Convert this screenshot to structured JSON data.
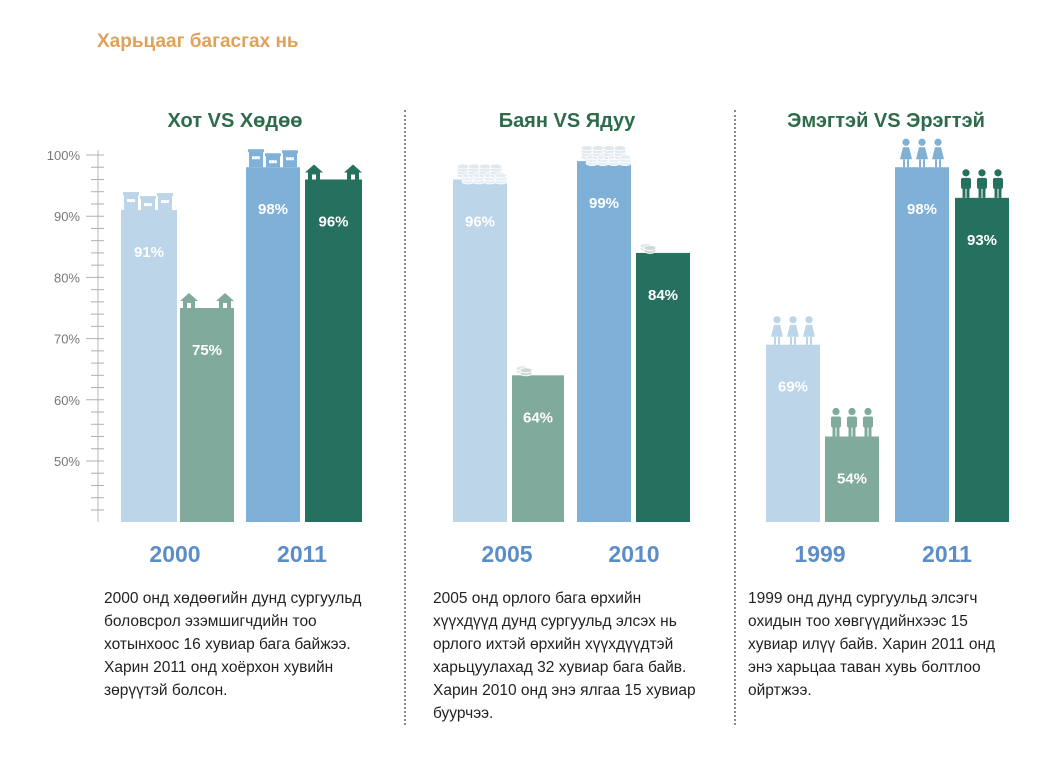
{
  "page_title": "Харьцааг багасгах нь",
  "colors": {
    "title_green": "#2e6b4b",
    "year_blue": "#5b8ec8",
    "light_blue": "#bcd5e8",
    "mid_blue": "#7fb0d8",
    "light_green": "#80aa9b",
    "dark_green": "#25705f"
  },
  "chart_data": [
    {
      "type": "bar",
      "title": "Хот VS Хөдөө",
      "y_ticks": [
        "100%",
        "90%",
        "80%",
        "70%",
        "60%",
        "50%"
      ],
      "ylim": [
        40,
        100
      ],
      "groups": [
        {
          "year": "2000",
          "bars": [
            {
              "name": "Хот",
              "value": 91,
              "label": "91%",
              "icon": "building-icon",
              "color": "#bcd5e8"
            },
            {
              "name": "Хөдөө",
              "value": 75,
              "label": "75%",
              "icon": "house-icon",
              "color": "#80aa9b"
            }
          ]
        },
        {
          "year": "2011",
          "bars": [
            {
              "name": "Хот",
              "value": 98,
              "label": "98%",
              "icon": "building-icon",
              "color": "#7fb0d8"
            },
            {
              "name": "Хөдөө",
              "value": 96,
              "label": "96%",
              "icon": "house-icon",
              "color": "#25705f"
            }
          ]
        }
      ],
      "description": "2000 онд хөдөөгийн дунд сургуульд\nболовсрол эзэмшигчдийн тоо\nхотынхоос 16 хувиар бага байжээ.\nХарин 2011 онд хоёрхон хувийн\nзөрүүтэй болсон."
    },
    {
      "type": "bar",
      "title": "Баян VS Ядуу",
      "ylim": [
        40,
        100
      ],
      "groups": [
        {
          "year": "2005",
          "bars": [
            {
              "name": "Баян",
              "value": 96,
              "label": "96%",
              "icon": "coin-stack-icon",
              "color": "#bcd5e8"
            },
            {
              "name": "Ядуу",
              "value": 64,
              "label": "64%",
              "icon": "coin-stack-icon",
              "color": "#80aa9b"
            }
          ]
        },
        {
          "year": "2010",
          "bars": [
            {
              "name": "Баян",
              "value": 99,
              "label": "99%",
              "icon": "coin-stack-icon",
              "color": "#7fb0d8"
            },
            {
              "name": "Ядуу",
              "value": 84,
              "label": "84%",
              "icon": "coin-stack-icon",
              "color": "#25705f"
            }
          ]
        }
      ],
      "description": "2005 онд орлого бага өрхийн\nхүүхдүүд дунд сургуульд элсэх нь\nорлого ихтэй өрхийн хүүхдүүдтэй\nхарьцуулахад 32 хувиар бага байв.\nХарин 2010 онд энэ ялгаа 15 хувиар\nбуурчээ."
    },
    {
      "type": "bar",
      "title": "Эмэгтэй VS Эрэгтэй",
      "ylim": [
        40,
        100
      ],
      "groups": [
        {
          "year": "1999",
          "bars": [
            {
              "name": "Эмэгтэй",
              "value": 69,
              "label": "69%",
              "icon": "female-icon",
              "color": "#bcd5e8"
            },
            {
              "name": "Эрэгтэй",
              "value": 54,
              "label": "54%",
              "icon": "male-icon",
              "color": "#80aa9b"
            }
          ]
        },
        {
          "year": "2011",
          "bars": [
            {
              "name": "Эмэгтэй",
              "value": 98,
              "label": "98%",
              "icon": "female-icon",
              "color": "#7fb0d8"
            },
            {
              "name": "Эрэгтэй",
              "value": 93,
              "label": "93%",
              "icon": "male-icon",
              "color": "#25705f"
            }
          ]
        }
      ],
      "description": "1999 онд дунд сургуульд элсэгч\nохидын тоо хөвгүүдийнхээс 15\nхувиар илүү байв. Харин 2011 онд\nэнэ харьцаа таван хувь болтлоо\nойртжээ."
    }
  ]
}
